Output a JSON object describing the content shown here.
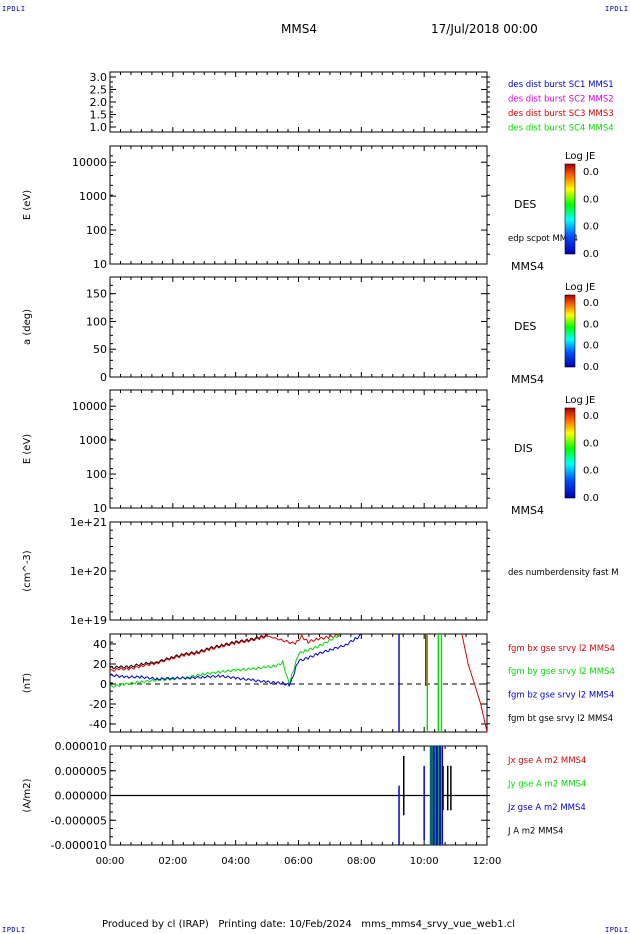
{
  "corners": {
    "tl": "IPDLI",
    "tr": "IPDLI",
    "bl": "IPDLI",
    "br": "IPDLI"
  },
  "header": {
    "spacecraft": "MMS4",
    "datetime": "17/Jul/2018 00:00"
  },
  "footer": {
    "produced": "Produced by cl (IRAP)",
    "printing": "Printing date: 10/Feb/2024",
    "file": "mms_mms4_srvy_vue_web1.cl"
  },
  "colors": {
    "black": "#000000",
    "red": "#dd0000",
    "green": "#00dd00",
    "blue": "#0000dd",
    "magenta": "#dd00dd"
  },
  "chart_data": [
    {
      "type": "line",
      "ylim": [
        0.8,
        3.2
      ],
      "yticks": [
        "3.0",
        "2.5",
        "2.0",
        "1.5",
        "1.0"
      ],
      "legend": [
        {
          "label": "des dist burst SC1 MMS1",
          "color": "#0000dd"
        },
        {
          "label": "des dist burst SC2 MMS2",
          "color": "#dd00dd"
        },
        {
          "label": "des dist burst SC3 MMS3",
          "color": "#dd0000"
        },
        {
          "label": "des dist burst SC4 MMS4",
          "color": "#00dd00"
        }
      ]
    },
    {
      "type": "heatmap",
      "ylabel": "E (eV)",
      "yscale": "log",
      "ylim": [
        10,
        30000
      ],
      "yticks": [
        "10000",
        "1000",
        "100",
        "10"
      ],
      "instrument": "DES",
      "overlay": "edp scpot MMS4",
      "mms_tag": "MMS4",
      "colorbar": {
        "title": "Log JE",
        "ticks": [
          "0.0",
          "0.0",
          "0.0",
          "0.0"
        ]
      }
    },
    {
      "type": "heatmap",
      "ylabel": "a (deg)",
      "ylim": [
        0,
        180
      ],
      "yticks": [
        "150",
        "100",
        "50",
        "0"
      ],
      "instrument": "DES",
      "mms_tag": "MMS4",
      "colorbar": {
        "title": "Log JE",
        "ticks": [
          "0.0",
          "0.0",
          "0.0",
          "0.0"
        ]
      }
    },
    {
      "type": "heatmap",
      "ylabel": "E (eV)",
      "yscale": "log",
      "ylim": [
        10,
        30000
      ],
      "yticks": [
        "10000",
        "1000",
        "100",
        "10"
      ],
      "instrument": "DIS",
      "mms_tag": "MMS4",
      "colorbar": {
        "title": "Log JE",
        "ticks": [
          "0.0",
          "0.0",
          "0.0",
          "0.0"
        ]
      }
    },
    {
      "type": "line",
      "ylabel": "(cm^-3)",
      "yscale": "log",
      "ylim": [
        1e+19,
        1e+21
      ],
      "yticks": [
        "1e+21",
        "1e+20",
        "1e+19"
      ],
      "legend": [
        {
          "label": "des numberdensity fast M",
          "color": "#000000"
        }
      ]
    },
    {
      "type": "line",
      "ylabel": "(nT)",
      "ylim": [
        -48,
        50
      ],
      "yticks": [
        "40",
        "20",
        "0",
        "-20",
        "-40"
      ],
      "legend": [
        {
          "label": "fgm bx gse srvy l2 MMS4",
          "color": "#dd0000"
        },
        {
          "label": "fgm by gse srvy l2 MMS4",
          "color": "#00dd00"
        },
        {
          "label": "fgm bz gse srvy l2 MMS4",
          "color": "#0000dd"
        },
        {
          "label": "fgm bt gse srvy l2 MMS4",
          "color": "#000000"
        }
      ],
      "series": [
        {
          "name": "fgm bt gse srvy l2 MMS4",
          "color": "#000000",
          "x": [
            0,
            0.3,
            0.6,
            1.0,
            1.5,
            2.0,
            2.4,
            2.8,
            3.2,
            3.6,
            4.0,
            4.4,
            4.8,
            5.0
          ],
          "y": [
            16,
            17,
            17,
            20,
            22,
            27,
            30,
            32,
            36,
            39,
            42,
            44,
            47,
            49
          ]
        },
        {
          "name": "fgm bx gse srvy l2 MMS4",
          "color": "#dd0000",
          "x": [
            0,
            0.3,
            0.6,
            1.0,
            1.5,
            2.0,
            2.4,
            2.8,
            3.2,
            3.6,
            4.0,
            4.4,
            4.8,
            5.0,
            5.9,
            6.1,
            6.3,
            6.6,
            7.0,
            7.3
          ],
          "y": [
            13,
            15,
            15,
            18,
            21,
            26,
            29,
            31,
            35,
            38,
            41,
            43,
            46,
            48,
            40,
            48,
            42,
            45,
            47,
            49
          ]
        },
        {
          "name": "fgm by gse srvy l2 MMS4",
          "color": "#00dd00",
          "x": [
            0,
            0.5,
            1.0,
            1.5,
            2.0,
            2.5,
            3.0,
            3.5,
            4.0,
            4.5,
            5.0,
            5.3,
            5.5,
            5.7,
            5.8,
            5.9,
            6.0,
            6.2,
            6.5,
            6.8,
            7.0,
            7.3
          ],
          "y": [
            -3,
            0,
            2,
            4,
            5,
            7,
            10,
            12,
            14,
            15,
            17,
            18,
            22,
            0,
            10,
            20,
            30,
            33,
            36,
            40,
            44,
            49
          ]
        },
        {
          "name": "fgm bz gse srvy l2 MMS4",
          "color": "#0000dd",
          "x": [
            0,
            0.5,
            1.0,
            1.5,
            2.0,
            2.5,
            3.0,
            3.5,
            4.0,
            4.5,
            5.0,
            5.3,
            5.5,
            5.7,
            5.8,
            5.9,
            6.0,
            6.3,
            6.6,
            7.0,
            7.5,
            7.8,
            8.0
          ],
          "y": [
            9,
            7,
            7,
            5,
            6,
            6,
            7,
            8,
            6,
            4,
            2,
            1,
            1,
            -1,
            5,
            15,
            23,
            26,
            30,
            34,
            39,
            45,
            49
          ]
        }
      ]
    },
    {
      "type": "line",
      "ylabel": "(A/m2)",
      "ylim": [
        -1e-05,
        1e-05
      ],
      "yticks": [
        "0.000010",
        "0.000005",
        "0.000000",
        "-0.000005",
        "-0.000010"
      ],
      "xlim": [
        0,
        12
      ],
      "xticks": [
        "00:00",
        "02:00",
        "04:00",
        "06:00",
        "08:00",
        "10:00",
        "12:00"
      ],
      "legend": [
        {
          "label": "Jx gse A m2 MMS4",
          "color": "#dd0000"
        },
        {
          "label": "Jy gse A m2 MMS4",
          "color": "#00dd00"
        },
        {
          "label": "Jz gse A m2 MMS4",
          "color": "#0000dd"
        },
        {
          "label": "J A m2 MMS4",
          "color": "#000000"
        }
      ]
    }
  ]
}
